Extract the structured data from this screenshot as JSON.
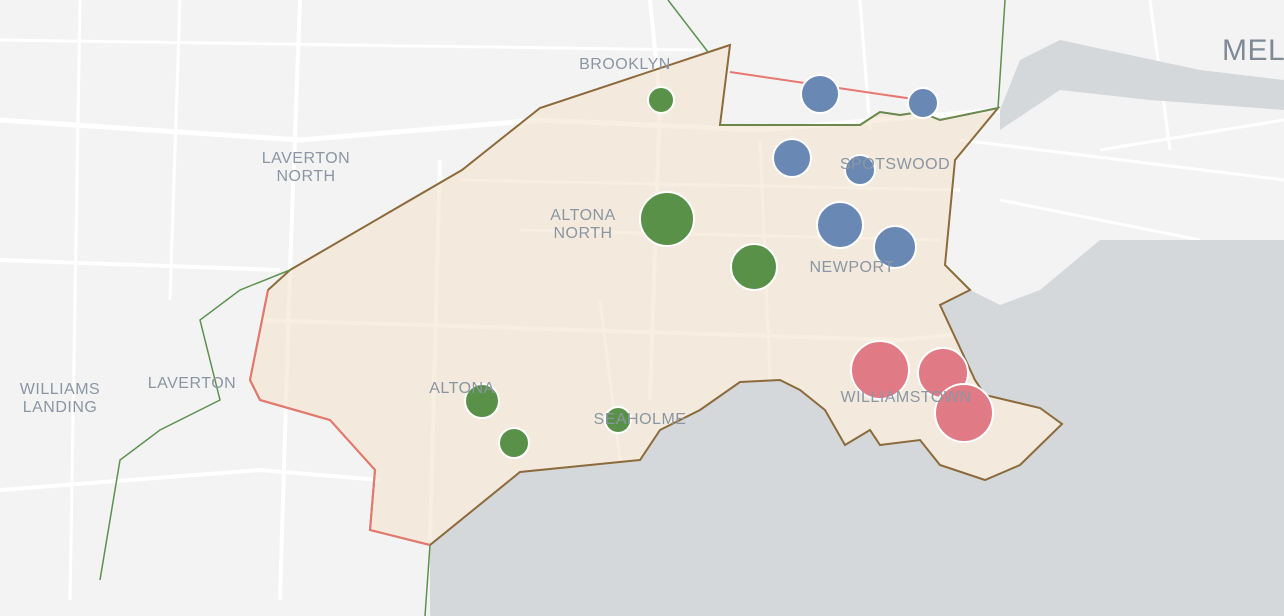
{
  "map": {
    "labels": [
      {
        "lines": [
          "BROOKLYN"
        ]
      },
      {
        "lines": [
          "LAVERTON",
          "NORTH"
        ]
      },
      {
        "lines": [
          "ALTONA",
          "NORTH"
        ]
      },
      {
        "lines": [
          "SPOTSWOOD"
        ]
      },
      {
        "lines": [
          "NEWPORT"
        ]
      },
      {
        "lines": [
          "ALTONA"
        ]
      },
      {
        "lines": [
          "SEAHOLME"
        ]
      },
      {
        "lines": [
          "WILLIAMSTOWN"
        ]
      },
      {
        "lines": [
          "WILLIAMS",
          "LANDING"
        ]
      },
      {
        "lines": [
          "LAVERTON"
        ]
      },
      {
        "lines": [
          "MEL"
        ]
      }
    ]
  }
}
